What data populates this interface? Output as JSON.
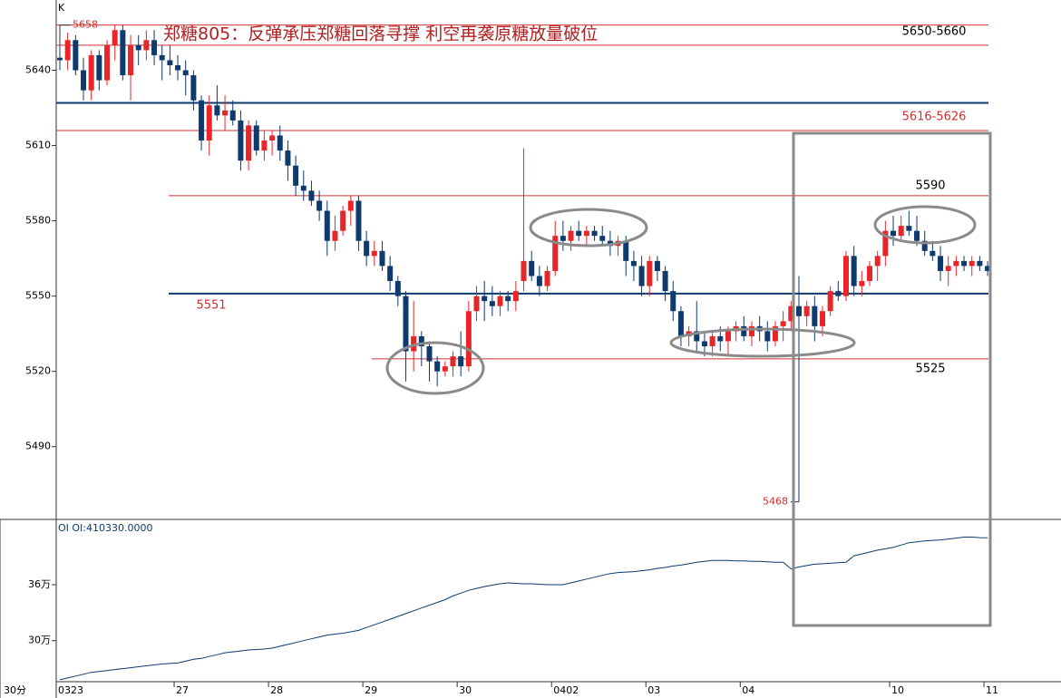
{
  "chart_data": {
    "type": "candlestick",
    "title": "郑糖805：反弹承压郑糖回落寻撑 利空再袭原糖放量破位",
    "panel_label": "K",
    "period_label": "30分",
    "up_color": "#e8262a",
    "down_color": "#0e3a6e",
    "ylim": [
      5461,
      5668
    ],
    "yticks": [
      5640,
      5610,
      5580,
      5550,
      5520,
      5490
    ],
    "categories": [
      "0323",
      null,
      null,
      null,
      null,
      null,
      null,
      null,
      null,
      null,
      null,
      null,
      null,
      null,
      null,
      "27",
      null,
      null,
      null,
      null,
      null,
      null,
      null,
      null,
      null,
      null,
      null,
      "28",
      null,
      null,
      null,
      null,
      null,
      null,
      null,
      null,
      null,
      null,
      null,
      "29",
      null,
      null,
      null,
      null,
      null,
      null,
      null,
      null,
      null,
      null,
      null,
      "30",
      null,
      null,
      null,
      null,
      null,
      null,
      null,
      null,
      null,
      null,
      null,
      "0402",
      null,
      null,
      null,
      null,
      null,
      null,
      null,
      null,
      null,
      null,
      null,
      "03",
      null,
      null,
      null,
      null,
      null,
      null,
      null,
      null,
      null,
      null,
      null,
      "04",
      null,
      null,
      null,
      null,
      null,
      null,
      null,
      null,
      null,
      null,
      null,
      null,
      null,
      null,
      null,
      null,
      null,
      null,
      "10",
      null,
      null,
      null,
      null,
      null,
      null,
      null,
      null,
      null,
      null,
      null,
      "11"
    ],
    "ohlc": [
      [
        5645,
        5650,
        5640,
        5644
      ],
      [
        5644,
        5655,
        5640,
        5652
      ],
      [
        5652,
        5654,
        5638,
        5640
      ],
      [
        5640,
        5645,
        5628,
        5632
      ],
      [
        5632,
        5648,
        5628,
        5646
      ],
      [
        5646,
        5648,
        5632,
        5636
      ],
      [
        5636,
        5652,
        5634,
        5650
      ],
      [
        5650,
        5658,
        5644,
        5656
      ],
      [
        5656,
        5658,
        5636,
        5638
      ],
      [
        5638,
        5654,
        5628,
        5650
      ],
      [
        5650,
        5654,
        5642,
        5648
      ],
      [
        5648,
        5656,
        5644,
        5652
      ],
      [
        5652,
        5656,
        5642,
        5646
      ],
      [
        5646,
        5650,
        5636,
        5644
      ],
      [
        5644,
        5650,
        5638,
        5642
      ],
      [
        5642,
        5646,
        5636,
        5640
      ],
      [
        5640,
        5644,
        5630,
        5638
      ],
      [
        5638,
        5640,
        5624,
        5628
      ],
      [
        5628,
        5630,
        5608,
        5612
      ],
      [
        5612,
        5630,
        5606,
        5626
      ],
      [
        5626,
        5634,
        5620,
        5622
      ],
      [
        5622,
        5630,
        5616,
        5624
      ],
      [
        5624,
        5628,
        5618,
        5620
      ],
      [
        5620,
        5624,
        5600,
        5604
      ],
      [
        5604,
        5620,
        5600,
        5618
      ],
      [
        5618,
        5620,
        5606,
        5608
      ],
      [
        5608,
        5616,
        5604,
        5612
      ],
      [
        5612,
        5616,
        5606,
        5614
      ],
      [
        5614,
        5618,
        5604,
        5608
      ],
      [
        5608,
        5612,
        5596,
        5602
      ],
      [
        5602,
        5606,
        5590,
        5594
      ],
      [
        5594,
        5600,
        5588,
        5592
      ],
      [
        5592,
        5596,
        5586,
        5588
      ],
      [
        5588,
        5592,
        5580,
        5584
      ],
      [
        5584,
        5588,
        5566,
        5572
      ],
      [
        5572,
        5582,
        5568,
        5576
      ],
      [
        5576,
        5586,
        5574,
        5584
      ],
      [
        5584,
        5590,
        5578,
        5588
      ],
      [
        5588,
        5590,
        5568,
        5572
      ],
      [
        5572,
        5576,
        5562,
        5566
      ],
      [
        5566,
        5572,
        5562,
        5568
      ],
      [
        5568,
        5572,
        5560,
        5562
      ],
      [
        5562,
        5566,
        5552,
        5556
      ],
      [
        5556,
        5558,
        5546,
        5550
      ],
      [
        5550,
        5552,
        5516,
        5528
      ],
      [
        5528,
        5548,
        5520,
        5534
      ],
      [
        5534,
        5536,
        5522,
        5530
      ],
      [
        5530,
        5532,
        5516,
        5524
      ],
      [
        5524,
        5526,
        5514,
        5520
      ],
      [
        5520,
        5524,
        5518,
        5522
      ],
      [
        5522,
        5528,
        5518,
        5526
      ],
      [
        5526,
        5536,
        5518,
        5522
      ],
      [
        5522,
        5548,
        5520,
        5544
      ],
      [
        5544,
        5554,
        5540,
        5550
      ],
      [
        5550,
        5556,
        5540,
        5548
      ],
      [
        5548,
        5554,
        5542,
        5546
      ],
      [
        5546,
        5552,
        5542,
        5550
      ],
      [
        5550,
        5552,
        5544,
        5548
      ],
      [
        5548,
        5556,
        5544,
        5552
      ],
      [
        5556,
        5609,
        5552,
        5564
      ],
      [
        5564,
        5568,
        5556,
        5558
      ],
      [
        5558,
        5562,
        5550,
        5554
      ],
      [
        5554,
        5562,
        5552,
        5560
      ],
      [
        5560,
        5580,
        5558,
        5574
      ],
      [
        5574,
        5580,
        5568,
        5572
      ],
      [
        5572,
        5578,
        5568,
        5576
      ],
      [
        5576,
        5580,
        5572,
        5574
      ],
      [
        5574,
        5578,
        5570,
        5576
      ],
      [
        5576,
        5578,
        5572,
        5574
      ],
      [
        5574,
        5578,
        5570,
        5572
      ],
      [
        5572,
        5576,
        5566,
        5570
      ],
      [
        5570,
        5574,
        5566,
        5572
      ],
      [
        5572,
        5574,
        5558,
        5564
      ],
      [
        5564,
        5568,
        5556,
        5562
      ],
      [
        5562,
        5566,
        5550,
        5554
      ],
      [
        5554,
        5566,
        5550,
        5564
      ],
      [
        5564,
        5566,
        5556,
        5560
      ],
      [
        5560,
        5562,
        5548,
        5552
      ],
      [
        5552,
        5556,
        5540,
        5544
      ],
      [
        5544,
        5546,
        5530,
        5534
      ],
      [
        5534,
        5538,
        5530,
        5536
      ],
      [
        5536,
        5548,
        5528,
        5532
      ],
      [
        5532,
        5536,
        5526,
        5530
      ],
      [
        5530,
        5536,
        5526,
        5534
      ],
      [
        5534,
        5538,
        5528,
        5532
      ],
      [
        5532,
        5538,
        5526,
        5536
      ],
      [
        5536,
        5540,
        5532,
        5538
      ],
      [
        5538,
        5542,
        5532,
        5534
      ],
      [
        5534,
        5540,
        5530,
        5538
      ],
      [
        5538,
        5542,
        5532,
        5536
      ],
      [
        5536,
        5540,
        5528,
        5532
      ],
      [
        5532,
        5540,
        5530,
        5538
      ],
      [
        5538,
        5544,
        5532,
        5540
      ],
      [
        5540,
        5548,
        5536,
        5546
      ],
      [
        5546,
        5558,
        5468,
        5542
      ],
      [
        5542,
        5548,
        5538,
        5546
      ],
      [
        5546,
        5550,
        5532,
        5538
      ],
      [
        5538,
        5546,
        5534,
        5544
      ],
      [
        5544,
        5554,
        5542,
        5552
      ],
      [
        5552,
        5556,
        5548,
        5550
      ],
      [
        5550,
        5568,
        5548,
        5566
      ],
      [
        5566,
        5570,
        5550,
        5554
      ],
      [
        5554,
        5560,
        5550,
        5556
      ],
      [
        5556,
        5564,
        5554,
        5562
      ],
      [
        5562,
        5568,
        5556,
        5566
      ],
      [
        5566,
        5580,
        5562,
        5576
      ],
      [
        5576,
        5582,
        5570,
        5574
      ],
      [
        5574,
        5582,
        5572,
        5578
      ],
      [
        5578,
        5584,
        5574,
        5576
      ],
      [
        5576,
        5582,
        5570,
        5572
      ],
      [
        5572,
        5576,
        5566,
        5568
      ],
      [
        5568,
        5572,
        5564,
        5566
      ],
      [
        5566,
        5570,
        5556,
        5560
      ],
      [
        5560,
        5566,
        5554,
        5562
      ],
      [
        5562,
        5566,
        5558,
        5564
      ],
      [
        5564,
        5566,
        5560,
        5562
      ],
      [
        5562,
        5566,
        5558,
        5564
      ],
      [
        5564,
        5566,
        5560,
        5562
      ],
      [
        5562,
        5564,
        5558,
        5560
      ]
    ],
    "levels": [
      {
        "value": 5658,
        "color": "#d03030"
      },
      {
        "value": 5650,
        "color": "#d03030"
      },
      {
        "value": 5627,
        "color": "#0e3a6e"
      },
      {
        "value": 5616,
        "color": "#d03030"
      },
      {
        "value": 5590,
        "color": "#d03030",
        "label": "5590"
      },
      {
        "value": 5551,
        "color": "#0e3a6e",
        "label": "5551"
      },
      {
        "value": 5525,
        "color": "#d03030",
        "label": "5525"
      }
    ],
    "zone_labels": [
      "5650-5660",
      "5616-5626"
    ],
    "high_mark": 5658,
    "low_mark": 5468,
    "oi": {
      "label": "OI OI:410330.0000",
      "color": "#0e3a6e",
      "ylim": [
        256000,
        430000
      ],
      "yticks": [
        {
          "value": 360000,
          "label": "36万"
        },
        {
          "value": 300000,
          "label": "30万"
        }
      ],
      "values": [
        258000,
        260000,
        262000,
        264000,
        266000,
        267000,
        268000,
        269000,
        270000,
        271000,
        272000,
        273000,
        274000,
        275000,
        275500,
        276000,
        278000,
        280000,
        281000,
        283000,
        285000,
        287000,
        288000,
        289000,
        290000,
        290500,
        291000,
        292000,
        294000,
        296000,
        298000,
        300000,
        302000,
        304000,
        306000,
        307000,
        308000,
        309500,
        311000,
        314000,
        317000,
        320000,
        323000,
        326000,
        329000,
        332000,
        335000,
        338000,
        341000,
        344000,
        348000,
        351000,
        354000,
        356000,
        358000,
        359500,
        361000,
        362000,
        361500,
        361000,
        361000,
        360500,
        360000,
        360000,
        360000,
        362000,
        364000,
        366000,
        368000,
        370000,
        372000,
        373000,
        373500,
        374000,
        375000,
        376000,
        377500,
        378500,
        380000,
        381000,
        382500,
        384000,
        385000,
        386000,
        386000,
        386000,
        385500,
        385500,
        385000,
        385000,
        384500,
        384000,
        384000,
        377000,
        379000,
        380500,
        382000,
        382500,
        383000,
        383500,
        384000,
        391000,
        393000,
        395000,
        397000,
        398500,
        400000,
        402500,
        405000,
        406000,
        407000,
        407500,
        408000,
        409000,
        410000,
        411000,
        411000,
        410500,
        410330
      ]
    }
  }
}
